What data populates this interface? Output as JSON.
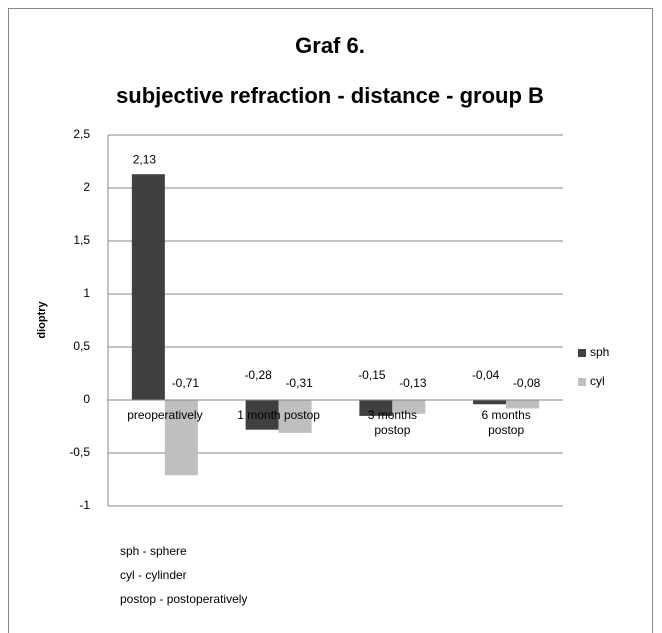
{
  "chart_data": {
    "type": "bar",
    "title": "Graf 6.",
    "subtitle": "subjective refraction - distance - group B",
    "ylabel": "dioptry",
    "categories": [
      "preoperatively",
      "1 month postop",
      "3 months postop",
      "6 months postop"
    ],
    "series": [
      {
        "name": "sph",
        "color": "#404040",
        "values": [
          2.13,
          -0.28,
          -0.15,
          -0.04
        ],
        "value_labels": [
          "2,13",
          "-0,28",
          "-0,15",
          "-0,04"
        ]
      },
      {
        "name": "cyl",
        "color": "#bfbfbf",
        "values": [
          -0.71,
          -0.31,
          -0.13,
          -0.08
        ],
        "value_labels": [
          "-0,71",
          "-0,31",
          "-0,13",
          "-0,08"
        ]
      }
    ],
    "ylim": [
      -1,
      2.5
    ],
    "yticks": [
      -1,
      {
        "value": -0.5,
        "label": "-0,5"
      },
      0,
      {
        "value": 0.5,
        "label": "0,5"
      },
      1,
      {
        "value": 1.5,
        "label": "1,5"
      },
      2,
      {
        "value": 2.5,
        "label": "2,5"
      }
    ],
    "grid": true,
    "legend": "right",
    "notes": [
      "sph - sphere",
      "cyl - cylinder",
      "postop - postoperatively"
    ]
  }
}
